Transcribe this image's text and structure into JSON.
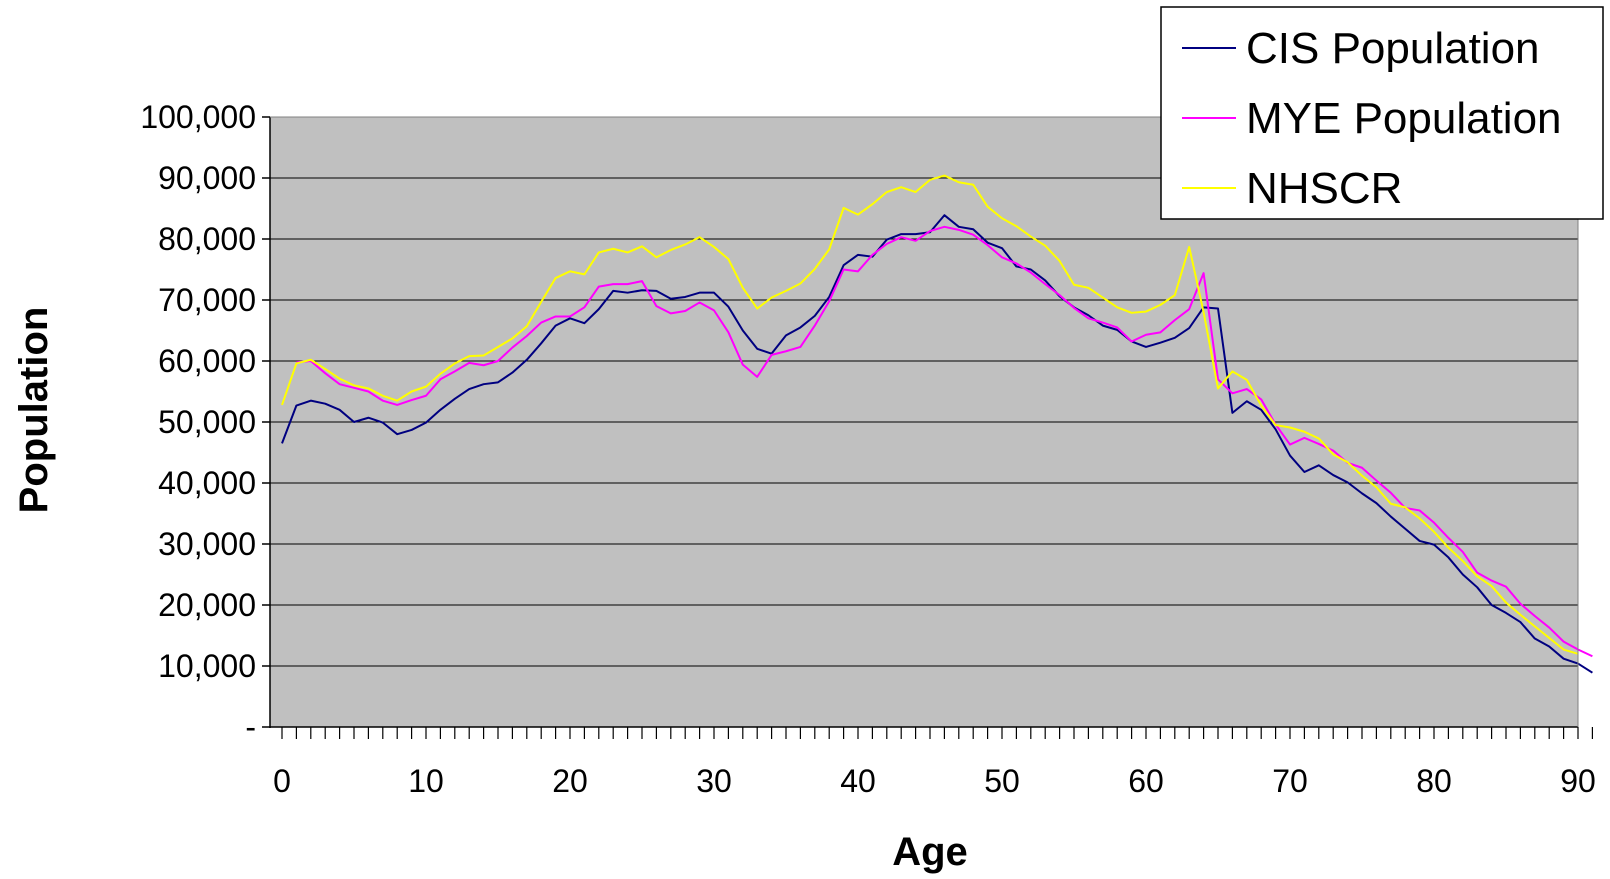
{
  "chart_data": {
    "type": "line",
    "xlabel": "Age",
    "ylabel": "Population",
    "xlim": [
      0,
      90
    ],
    "ylim": [
      0,
      100000
    ],
    "x_ticks": [
      0,
      10,
      20,
      30,
      40,
      50,
      60,
      70,
      80,
      90
    ],
    "y_ticks": [
      0,
      10000,
      20000,
      30000,
      40000,
      50000,
      60000,
      70000,
      80000,
      90000,
      100000
    ],
    "y_tick_labels": [
      "-",
      "10,000",
      "20,000",
      "30,000",
      "40,000",
      "50,000",
      "60,000",
      "70,000",
      "80,000",
      "90,000",
      "100,000"
    ],
    "x_tick_labels": [
      "0",
      "10",
      "20",
      "30",
      "40",
      "50",
      "60",
      "70",
      "80",
      "90"
    ],
    "grid": "horizontal",
    "plot_background": "#c0c0c0",
    "legend_position": "top-right",
    "series": [
      {
        "name": "CIS Population",
        "color": "#000080",
        "values": [
          46500,
          52700,
          53500,
          53000,
          52000,
          50000,
          50700,
          49900,
          48000,
          48700,
          49900,
          52000,
          53800,
          55400,
          56200,
          56500,
          58100,
          60200,
          62900,
          65800,
          67000,
          66200,
          68500,
          71500,
          71200,
          71600,
          71500,
          70200,
          70500,
          71200,
          71200,
          68900,
          65000,
          62000,
          61200,
          64200,
          65500,
          67400,
          70500,
          75700,
          77400,
          77100,
          79900,
          80800,
          80800,
          81100,
          83900,
          82000,
          81600,
          79400,
          78500,
          75500,
          75000,
          73200,
          70600,
          68800,
          67500,
          65800,
          65100,
          63200,
          62300,
          63000,
          63800,
          65400,
          68800,
          68600,
          51500,
          53400,
          52000,
          48800,
          44500,
          41800,
          42900,
          41300,
          40100,
          38300,
          36700,
          34500,
          32500,
          30500,
          29900,
          27800,
          25000,
          22900,
          20000,
          18700,
          17200,
          14500,
          13200,
          11200,
          10400,
          8900
        ]
      },
      {
        "name": "MYE Population",
        "color": "#ff00ff",
        "values": [
          null,
          59800,
          60000,
          58000,
          56200,
          55600,
          55000,
          53500,
          52800,
          53600,
          54300,
          57000,
          58300,
          59700,
          59300,
          60000,
          62200,
          64100,
          66300,
          67300,
          67300,
          68800,
          72200,
          72600,
          72600,
          73100,
          69000,
          67800,
          68200,
          69600,
          68300,
          64700,
          59400,
          57400,
          61000,
          61600,
          62300,
          65800,
          69800,
          75000,
          74700,
          77400,
          79200,
          80300,
          79700,
          81300,
          82000,
          81500,
          80700,
          79000,
          77000,
          76000,
          74500,
          72600,
          70800,
          68700,
          67000,
          66300,
          65500,
          63200,
          64300,
          64700,
          66700,
          68500,
          74400,
          57000,
          54700,
          55400,
          53700,
          49600,
          46300,
          47400,
          46400,
          45300,
          43300,
          42500,
          40400,
          38400,
          35900,
          35500,
          33500,
          31000,
          28700,
          25300,
          24000,
          23000,
          20200,
          18200,
          16300,
          14000,
          12700,
          11600
        ]
      },
      {
        "name": "NHSCR",
        "color": "#ffff00",
        "values": [
          52800,
          59600,
          60200,
          58700,
          57100,
          56000,
          55500,
          54300,
          53500,
          55000,
          55800,
          57900,
          59600,
          60800,
          60900,
          62300,
          63700,
          65700,
          69700,
          73600,
          74700,
          74200,
          77800,
          78400,
          77800,
          78800,
          77000,
          78200,
          79100,
          80300,
          78700,
          76700,
          72000,
          68600,
          70400,
          71500,
          72700,
          75100,
          78300,
          85100,
          84000,
          85700,
          87700,
          88500,
          87700,
          89700,
          90400,
          89300,
          88900,
          85300,
          83400,
          82100,
          80400,
          78900,
          76400,
          72500,
          72000,
          70400,
          68800,
          67900,
          68100,
          69200,
          70800,
          78700,
          68000,
          55500,
          58300,
          56900,
          52700,
          49500,
          49100,
          48400,
          47300,
          44700,
          43400,
          41200,
          39300,
          36600,
          36000,
          34200,
          32000,
          29400,
          27200,
          24700,
          23100,
          20400,
          18400,
          16500,
          14600,
          12700,
          12000,
          null
        ]
      }
    ]
  }
}
